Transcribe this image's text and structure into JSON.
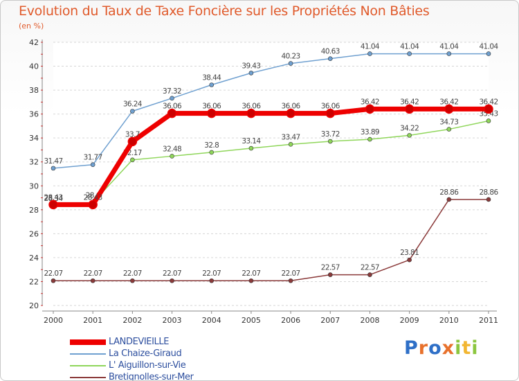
{
  "title": "Evolution du Taux de Taxe Foncière sur les Propriétés Non Bâties",
  "unit": "(en %)",
  "logo": "Proxiti",
  "chart_data": {
    "type": "line",
    "title": "Evolution du Taux de Taxe Foncière sur les Propriétés Non Bâties",
    "ylabel": "(en %)",
    "xlabel": "",
    "x": [
      "2000",
      "2001",
      "2002",
      "2003",
      "2004",
      "2005",
      "2006",
      "2007",
      "2008",
      "2009",
      "2010",
      "2011"
    ],
    "ylim": [
      20,
      42
    ],
    "yticks": [
      20,
      22,
      24,
      26,
      28,
      30,
      32,
      34,
      36,
      38,
      40,
      42
    ],
    "grid": "horizontal dashed",
    "legend_position": "bottom-left",
    "series": [
      {
        "name": "LANDEVIEILLE",
        "color": "#ee0000",
        "values": [
          28.43,
          28.43,
          33.7,
          36.06,
          36.06,
          36.06,
          36.06,
          36.06,
          36.42,
          36.42,
          36.42,
          36.42
        ],
        "labels": [
          "28.43",
          "28.43",
          "33.7",
          "36.06",
          "36.06",
          "36.06",
          "36.06",
          "36.06",
          "36.42",
          "36.42",
          "36.42",
          "36.42"
        ]
      },
      {
        "name": "La Chaize-Giraud",
        "color": "#6fa0d0",
        "values": [
          31.47,
          31.77,
          36.24,
          37.32,
          38.44,
          39.43,
          40.23,
          40.63,
          41.04,
          41.04,
          41.04,
          41.04
        ],
        "labels": [
          "31.47",
          "31.77",
          "36.24",
          "37.32",
          "38.44",
          "39.43",
          "40.23",
          "40.63",
          "41.04",
          "41.04",
          "41.04",
          "41.04"
        ]
      },
      {
        "name": "L' Aiguillon-sur-Vie",
        "color": "#8fd65a",
        "values": [
          28.34,
          28.6,
          32.17,
          32.48,
          32.8,
          33.14,
          33.47,
          33.72,
          33.89,
          34.22,
          34.73,
          35.43
        ],
        "labels": [
          "28.34",
          "28.6",
          "32.17",
          "32.48",
          "32.8",
          "33.14",
          "33.47",
          "33.72",
          "33.89",
          "34.22",
          "34.73",
          "35.43"
        ]
      },
      {
        "name": "Bretignolles-sur-Mer",
        "color": "#8b3a3a",
        "values": [
          22.07,
          22.07,
          22.07,
          22.07,
          22.07,
          22.07,
          22.07,
          22.57,
          22.57,
          23.81,
          28.86,
          28.86
        ],
        "labels": [
          "22.07",
          "22.07",
          "22.07",
          "22.07",
          "22.07",
          "22.07",
          "22.07",
          "22.57",
          "22.57",
          "23.81",
          "28.86",
          "28.86"
        ]
      }
    ]
  }
}
